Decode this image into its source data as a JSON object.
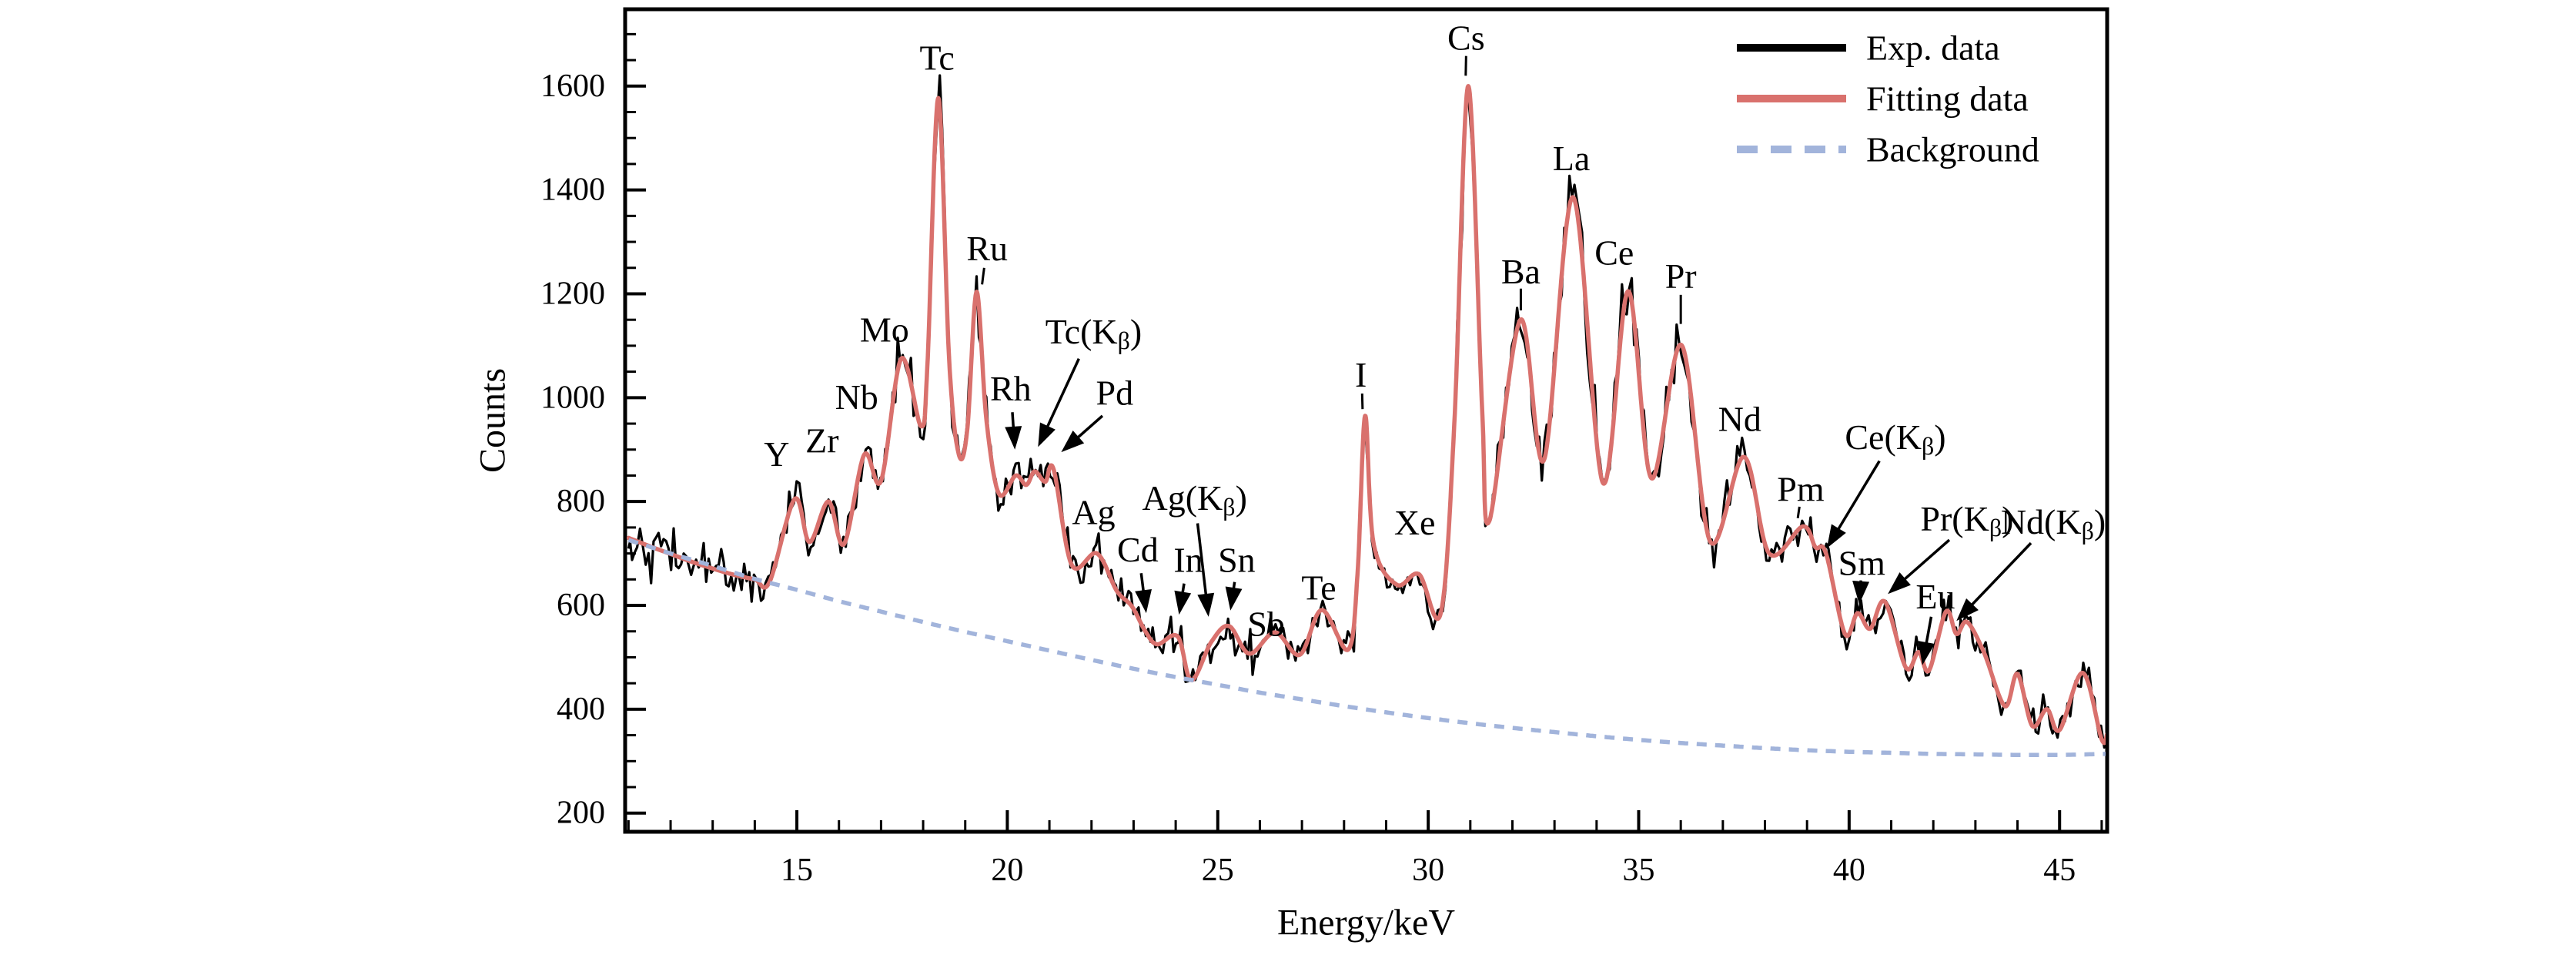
{
  "chart_data": {
    "type": "line",
    "title": "",
    "xlabel": "Energy/keV",
    "ylabel": "Counts",
    "xlim": [
      10.92,
      46.13
    ],
    "ylim": [
      164,
      1748
    ],
    "grid": false,
    "x_major_ticks": [
      15,
      20,
      25,
      30,
      35,
      40,
      45
    ],
    "x_minor_tick_step": 1,
    "y_major_ticks": [
      200,
      400,
      600,
      800,
      1000,
      1200,
      1400,
      1600
    ],
    "y_minor_tick_step": 50,
    "legend_position": "top-right-inside",
    "legend": [
      {
        "label": "Exp. data",
        "color": "#000000",
        "style": "solid"
      },
      {
        "label": "Fitting data",
        "color": "#d9716d",
        "style": "solid"
      },
      {
        "label": "Background",
        "color": "#a2b4db",
        "style": "dashed"
      }
    ],
    "series": [
      {
        "name": "Exp. data",
        "color": "#000000",
        "style": "solid",
        "derivation": "fitting_curve_plus_noise",
        "noise_seed": 42,
        "noise_scale": 0.8,
        "sample_step_kev": 0.06
      },
      {
        "name": "Fitting data",
        "color": "#d9716d",
        "style": "solid",
        "anchors": [
          [
            11.0,
            730
          ],
          [
            11.5,
            714
          ],
          [
            12.0,
            699
          ],
          [
            12.5,
            684
          ],
          [
            13.0,
            671
          ],
          [
            13.5,
            659
          ],
          [
            14.0,
            650
          ],
          [
            14.35,
            645
          ],
          [
            14.95,
            805
          ],
          [
            15.3,
            722
          ],
          [
            15.75,
            800
          ],
          [
            16.12,
            718
          ],
          [
            16.6,
            890
          ],
          [
            17.0,
            840
          ],
          [
            17.48,
            1075
          ],
          [
            17.95,
            945
          ],
          [
            18.1,
            1060
          ],
          [
            18.36,
            1577
          ],
          [
            18.62,
            1070
          ],
          [
            18.85,
            890
          ],
          [
            19.05,
            940
          ],
          [
            19.27,
            1204
          ],
          [
            19.5,
            960
          ],
          [
            19.8,
            815
          ],
          [
            20.2,
            850
          ],
          [
            20.45,
            832
          ],
          [
            20.65,
            858
          ],
          [
            20.9,
            838
          ],
          [
            21.1,
            862
          ],
          [
            21.53,
            678
          ],
          [
            22.13,
            700
          ],
          [
            22.6,
            628
          ],
          [
            22.96,
            598
          ],
          [
            23.28,
            550
          ],
          [
            23.56,
            525
          ],
          [
            24.05,
            540
          ],
          [
            24.37,
            456
          ],
          [
            24.85,
            530
          ],
          [
            25.27,
            560
          ],
          [
            25.75,
            507
          ],
          [
            26.36,
            548
          ],
          [
            26.95,
            505
          ],
          [
            27.47,
            591
          ],
          [
            28.1,
            515
          ],
          [
            28.32,
            660
          ],
          [
            28.5,
            965
          ],
          [
            28.7,
            720
          ],
          [
            29.25,
            640
          ],
          [
            29.78,
            660
          ],
          [
            30.3,
            586
          ],
          [
            30.62,
            950
          ],
          [
            30.95,
            1600
          ],
          [
            31.28,
            980
          ],
          [
            31.45,
            762
          ],
          [
            32.19,
            1150
          ],
          [
            32.75,
            880
          ],
          [
            33.44,
            1386
          ],
          [
            34.15,
            836
          ],
          [
            34.75,
            1205
          ],
          [
            35.3,
            845
          ],
          [
            36.02,
            1101
          ],
          [
            36.7,
            723
          ],
          [
            37.5,
            886
          ],
          [
            38.1,
            700
          ],
          [
            38.9,
            752
          ],
          [
            39.2,
            712
          ],
          [
            39.45,
            700
          ],
          [
            39.9,
            545
          ],
          [
            40.2,
            585
          ],
          [
            40.5,
            555
          ],
          [
            40.85,
            607
          ],
          [
            41.35,
            480
          ],
          [
            41.65,
            510
          ],
          [
            41.9,
            475
          ],
          [
            42.3,
            588
          ],
          [
            42.55,
            545
          ],
          [
            42.8,
            568
          ],
          [
            43.2,
            510
          ],
          [
            43.7,
            406
          ],
          [
            44.0,
            468
          ],
          [
            44.35,
            368
          ],
          [
            44.7,
            400
          ],
          [
            45.0,
            360
          ],
          [
            45.55,
            470
          ],
          [
            46.0,
            342
          ],
          [
            46.13,
            352
          ]
        ]
      },
      {
        "name": "Background",
        "color": "#a2b4db",
        "style": "dashed",
        "anchors": [
          [
            11,
            726
          ],
          [
            12,
            700
          ],
          [
            13,
            676
          ],
          [
            14,
            651
          ],
          [
            15,
            630
          ],
          [
            16,
            608
          ],
          [
            17,
            588
          ],
          [
            18,
            568
          ],
          [
            19,
            549
          ],
          [
            20,
            531
          ],
          [
            21,
            513
          ],
          [
            22,
            495
          ],
          [
            23,
            478
          ],
          [
            24,
            462
          ],
          [
            25,
            447
          ],
          [
            26,
            432
          ],
          [
            27,
            419
          ],
          [
            28,
            406
          ],
          [
            29,
            394
          ],
          [
            30,
            383
          ],
          [
            31,
            373
          ],
          [
            32,
            364
          ],
          [
            33,
            356
          ],
          [
            34,
            348
          ],
          [
            35,
            341
          ],
          [
            36,
            335
          ],
          [
            37,
            330
          ],
          [
            38,
            325
          ],
          [
            39,
            321
          ],
          [
            40,
            318
          ],
          [
            41,
            316
          ],
          [
            42,
            314
          ],
          [
            43,
            313
          ],
          [
            44,
            312
          ],
          [
            45,
            312
          ],
          [
            46.13,
            314
          ]
        ]
      }
    ],
    "peaks": [
      {
        "element": "Y",
        "energy_kev": 14.95,
        "counts": 805
      },
      {
        "element": "Zr",
        "energy_kev": 15.75,
        "counts": 800
      },
      {
        "element": "Nb",
        "energy_kev": 16.6,
        "counts": 890
      },
      {
        "element": "Mo",
        "energy_kev": 17.48,
        "counts": 1075
      },
      {
        "element": "Tc",
        "energy_kev": 18.36,
        "counts": 1577
      },
      {
        "element": "Ru",
        "energy_kev": 19.27,
        "counts": 1204
      },
      {
        "element": "Rh",
        "energy_kev": 20.2,
        "counts": 850
      },
      {
        "element": "Tc(Kβ)",
        "energy_kev": 20.65,
        "counts": 858
      },
      {
        "element": "Pd",
        "energy_kev": 21.1,
        "counts": 862
      },
      {
        "element": "Ag",
        "energy_kev": 22.13,
        "counts": 700
      },
      {
        "element": "Cd",
        "energy_kev": 23.28,
        "counts": 550
      },
      {
        "element": "In",
        "energy_kev": 24.05,
        "counts": 540
      },
      {
        "element": "Ag(Kβ)",
        "energy_kev": 24.85,
        "counts": 530
      },
      {
        "element": "Sn",
        "energy_kev": 25.27,
        "counts": 560
      },
      {
        "element": "Sb",
        "energy_kev": 26.36,
        "counts": 548
      },
      {
        "element": "Te",
        "energy_kev": 27.47,
        "counts": 591
      },
      {
        "element": "I",
        "energy_kev": 28.5,
        "counts": 965
      },
      {
        "element": "Xe",
        "energy_kev": 29.78,
        "counts": 660
      },
      {
        "element": "Cs",
        "energy_kev": 30.95,
        "counts": 1600
      },
      {
        "element": "Ba",
        "energy_kev": 32.19,
        "counts": 1150
      },
      {
        "element": "La",
        "energy_kev": 33.44,
        "counts": 1386
      },
      {
        "element": "Ce",
        "energy_kev": 34.75,
        "counts": 1205
      },
      {
        "element": "Pr",
        "energy_kev": 36.02,
        "counts": 1101
      },
      {
        "element": "Nd",
        "energy_kev": 37.5,
        "counts": 886
      },
      {
        "element": "Pm",
        "energy_kev": 38.9,
        "counts": 752
      },
      {
        "element": "Ce(Kβ)",
        "energy_kev": 39.45,
        "counts": 700
      },
      {
        "element": "Sm",
        "energy_kev": 40.2,
        "counts": 585
      },
      {
        "element": "Pr(Kβ)",
        "energy_kev": 40.85,
        "counts": 607
      },
      {
        "element": "Eu",
        "energy_kev": 41.65,
        "counts": 510
      },
      {
        "element": "Nd(Kβ)",
        "energy_kev": 42.3,
        "counts": 588
      }
    ],
    "annotations": [
      {
        "label": "Y",
        "type": "plain",
        "x": 14.52,
        "y": 892
      },
      {
        "label": "Zr",
        "type": "plain",
        "x": 15.6,
        "y": 918
      },
      {
        "label": "Nb",
        "type": "plain",
        "x": 16.42,
        "y": 1002
      },
      {
        "label": "Mo",
        "type": "plain",
        "x": 17.08,
        "y": 1132
      },
      {
        "label": "Tc",
        "type": "plain",
        "x": 18.33,
        "y": 1655
      },
      {
        "label": "Ru",
        "type": "leader",
        "x": 19.52,
        "y": 1288,
        "from": [
          19.45,
          1250
        ],
        "to": [
          19.4,
          1218
        ]
      },
      {
        "label": "Rh",
        "type": "arrow",
        "x": 20.08,
        "y": 1018,
        "from": [
          20.12,
          972
        ],
        "to": [
          20.18,
          900
        ]
      },
      {
        "label": "Tc(Kβ)",
        "type": "arrow",
        "x": 22.05,
        "y": 1128,
        "from": [
          21.7,
          1075
        ],
        "to": [
          20.73,
          905
        ]
      },
      {
        "label": "Pd",
        "type": "arrow",
        "x": 22.55,
        "y": 1010,
        "from": [
          22.26,
          965
        ],
        "to": [
          21.28,
          895
        ]
      },
      {
        "label": "Ag",
        "type": "plain",
        "x": 22.05,
        "y": 780
      },
      {
        "label": "Cd",
        "type": "arrow",
        "x": 23.1,
        "y": 708,
        "from": [
          23.18,
          662
        ],
        "to": [
          23.3,
          585
        ]
      },
      {
        "label": "In",
        "type": "arrow",
        "x": 24.3,
        "y": 688,
        "from": [
          24.2,
          642
        ],
        "to": [
          24.08,
          582
        ]
      },
      {
        "label": "Ag(Kβ)",
        "type": "arrow",
        "x": 24.45,
        "y": 808,
        "from": [
          24.52,
          758
        ],
        "to": [
          24.78,
          578
        ]
      },
      {
        "label": "Sn",
        "type": "arrow",
        "x": 25.45,
        "y": 688,
        "from": [
          25.4,
          645
        ],
        "to": [
          25.3,
          590
        ]
      },
      {
        "label": "Sb",
        "type": "plain",
        "x": 26.15,
        "y": 565
      },
      {
        "label": "Te",
        "type": "plain",
        "x": 27.4,
        "y": 635
      },
      {
        "label": "I",
        "type": "leader",
        "x": 28.4,
        "y": 1045,
        "from": [
          28.43,
          1008
        ],
        "to": [
          28.44,
          978
        ]
      },
      {
        "label": "Xe",
        "type": "plain",
        "x": 29.68,
        "y": 760
      },
      {
        "label": "Cs",
        "type": "leader",
        "x": 30.9,
        "y": 1694,
        "from": [
          30.9,
          1658
        ],
        "to": [
          30.89,
          1620
        ]
      },
      {
        "label": "Ba",
        "type": "leader",
        "x": 32.2,
        "y": 1244,
        "from": [
          32.2,
          1210
        ],
        "to": [
          32.2,
          1168
        ]
      },
      {
        "label": "La",
        "type": "plain",
        "x": 33.4,
        "y": 1462
      },
      {
        "label": "Ce",
        "type": "plain",
        "x": 34.42,
        "y": 1280
      },
      {
        "label": "Pr",
        "type": "leader",
        "x": 36.0,
        "y": 1235,
        "from": [
          36.0,
          1198
        ],
        "to": [
          36.0,
          1142
        ]
      },
      {
        "label": "Nd",
        "type": "plain",
        "x": 37.4,
        "y": 960
      },
      {
        "label": "Pm",
        "type": "leader",
        "x": 38.85,
        "y": 825,
        "from": [
          38.82,
          790
        ],
        "to": [
          38.78,
          768
        ]
      },
      {
        "label": "Ce(Kβ)",
        "type": "arrow",
        "x": 41.1,
        "y": 925,
        "from": [
          40.72,
          878
        ],
        "to": [
          39.47,
          710
        ]
      },
      {
        "label": "Sm",
        "type": "arrow",
        "x": 40.3,
        "y": 682,
        "from": [
          40.28,
          648
        ],
        "to": [
          40.24,
          602
        ]
      },
      {
        "label": "Pr(Kβ)",
        "type": "arrow",
        "x": 42.8,
        "y": 768,
        "from": [
          42.38,
          726
        ],
        "to": [
          40.92,
          622
        ]
      },
      {
        "label": "Eu",
        "type": "arrow",
        "x": 42.05,
        "y": 618,
        "from": [
          41.95,
          578
        ],
        "to": [
          41.74,
          485
        ]
      },
      {
        "label": "Nd(Kβ)",
        "type": "arrow",
        "x": 44.85,
        "y": 762,
        "from": [
          44.32,
          720
        ],
        "to": [
          42.55,
          570
        ]
      }
    ]
  }
}
